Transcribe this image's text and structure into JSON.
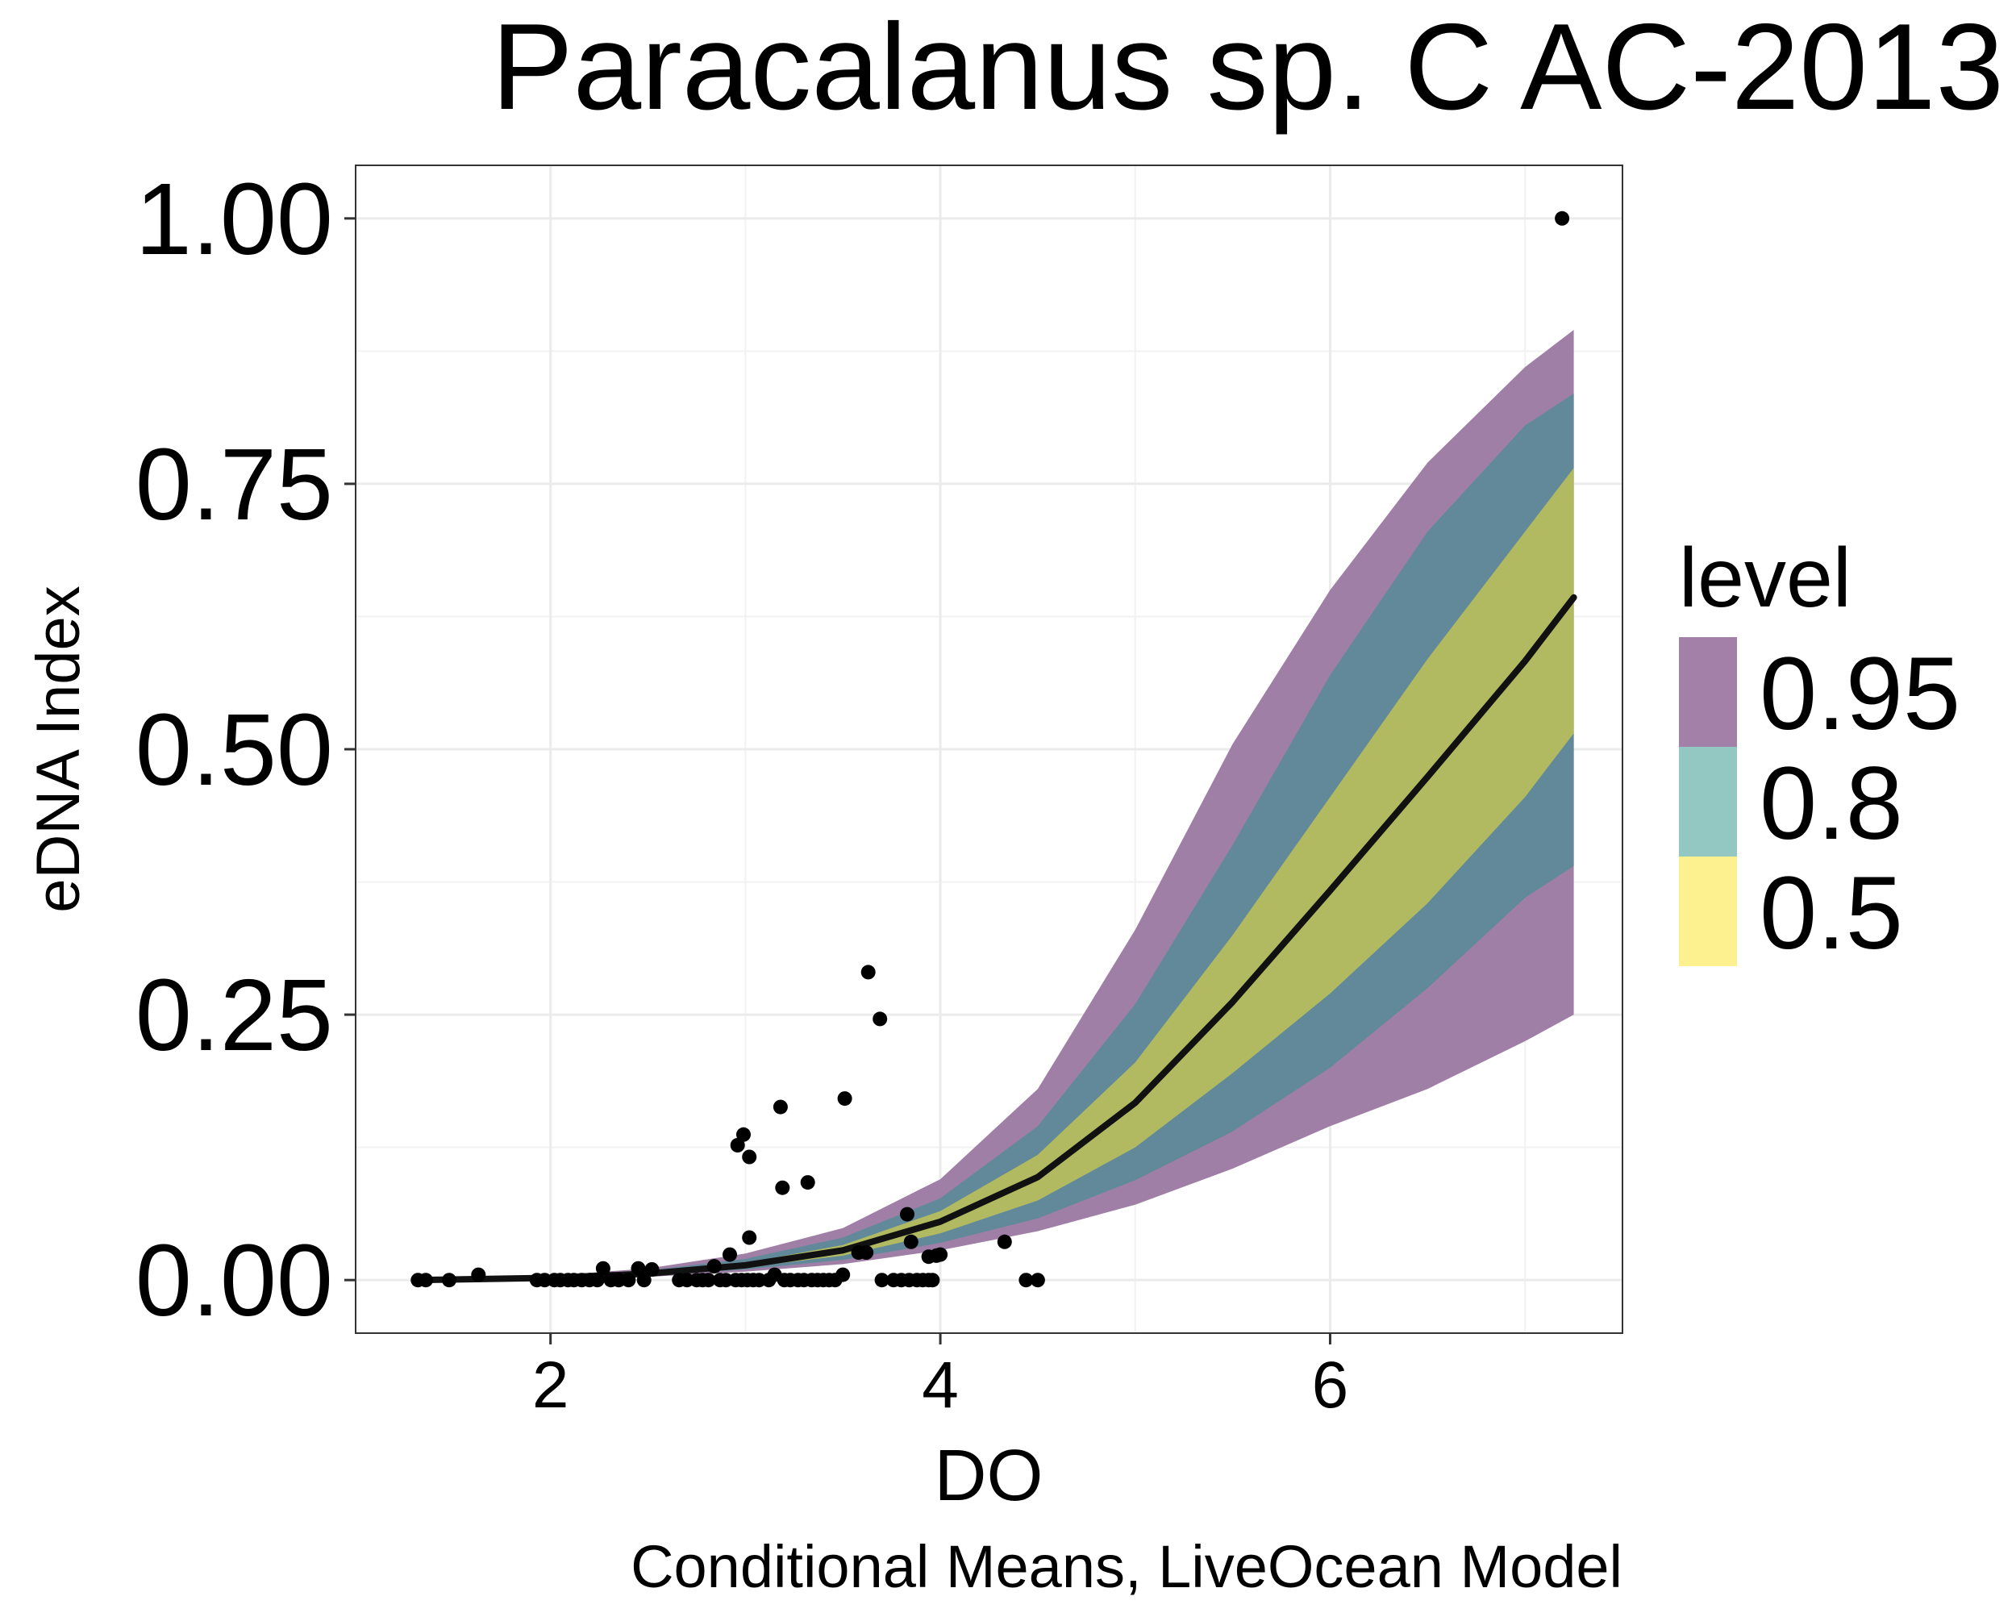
{
  "chart_data": {
    "type": "scatter",
    "title": "Paracalanus sp. C AC-2013",
    "xlabel": "DO",
    "ylabel": "eDNA Index",
    "caption": "Conditional Means, LiveOcean Model",
    "xlim": [
      1.0,
      7.5
    ],
    "ylim": [
      -0.05,
      1.05
    ],
    "x_ticks": [
      2,
      4,
      6
    ],
    "x_tick_labels": [
      "2",
      "4",
      "6"
    ],
    "x_minor_ticks": [
      1,
      3,
      5,
      7
    ],
    "y_ticks": [
      0,
      0.25,
      0.5,
      0.75,
      1.0
    ],
    "y_tick_labels": [
      "0.00",
      "0.25",
      "0.50",
      "0.75",
      "1.00"
    ],
    "y_minor_ticks": [
      0.125,
      0.375,
      0.625,
      0.875
    ],
    "grid": true,
    "legend": {
      "title": "level",
      "placement": "right",
      "entries": [
        {
          "label": "0.95",
          "color": "#a380a8"
        },
        {
          "label": "0.8",
          "color": "#93c7c2"
        },
        {
          "label": "0.5",
          "color": "#fdf08e"
        }
      ]
    },
    "band_colors": {
      "0.95": "#a07fa6",
      "0.8": "#62899a",
      "0.5": "#b1ba60"
    },
    "line_color": "#111111",
    "curve_x": [
      1.3,
      2.0,
      2.5,
      3.0,
      3.5,
      4.0,
      4.5,
      5.0,
      5.5,
      6.0,
      6.5,
      7.0,
      7.25
    ],
    "mean": [
      0.0,
      0.002,
      0.006,
      0.014,
      0.028,
      0.055,
      0.097,
      0.167,
      0.262,
      0.367,
      0.474,
      0.583,
      0.643
    ],
    "band_50": {
      "lower": [
        0.0,
        0.002,
        0.005,
        0.012,
        0.023,
        0.044,
        0.075,
        0.125,
        0.195,
        0.27,
        0.355,
        0.455,
        0.515
      ],
      "upper": [
        0.0,
        0.003,
        0.007,
        0.016,
        0.033,
        0.065,
        0.118,
        0.205,
        0.325,
        0.455,
        0.585,
        0.705,
        0.765
      ]
    },
    "band_80": {
      "lower": [
        0.0,
        0.0015,
        0.004,
        0.01,
        0.019,
        0.035,
        0.058,
        0.094,
        0.14,
        0.2,
        0.275,
        0.36,
        0.39
      ],
      "upper": [
        0.001,
        0.0035,
        0.009,
        0.02,
        0.04,
        0.077,
        0.145,
        0.26,
        0.41,
        0.57,
        0.705,
        0.805,
        0.835
      ]
    },
    "band_95": {
      "lower": [
        0.0,
        0.001,
        0.003,
        0.008,
        0.015,
        0.028,
        0.046,
        0.071,
        0.105,
        0.145,
        0.18,
        0.225,
        0.25
      ],
      "upper": [
        0.001,
        0.004,
        0.011,
        0.025,
        0.049,
        0.095,
        0.18,
        0.33,
        0.505,
        0.65,
        0.77,
        0.86,
        0.895
      ]
    },
    "points": [
      [
        1.32,
        0.0
      ],
      [
        1.36,
        0.0
      ],
      [
        1.48,
        0.0
      ],
      [
        1.63,
        0.005
      ],
      [
        1.93,
        0.0
      ],
      [
        1.97,
        0.0
      ],
      [
        2.02,
        0.0
      ],
      [
        2.05,
        0.0
      ],
      [
        2.09,
        0.0
      ],
      [
        2.12,
        0.0
      ],
      [
        2.16,
        0.0
      ],
      [
        2.2,
        0.0
      ],
      [
        2.24,
        0.0
      ],
      [
        2.27,
        0.011
      ],
      [
        2.31,
        0.0
      ],
      [
        2.35,
        0.0
      ],
      [
        2.4,
        0.0
      ],
      [
        2.45,
        0.011
      ],
      [
        2.48,
        0.0
      ],
      [
        2.52,
        0.01
      ],
      [
        2.66,
        0.0
      ],
      [
        2.7,
        0.0
      ],
      [
        2.75,
        0.0
      ],
      [
        2.78,
        0.0
      ],
      [
        2.81,
        0.0
      ],
      [
        2.84,
        0.013
      ],
      [
        2.87,
        0.0
      ],
      [
        2.9,
        0.0
      ],
      [
        2.92,
        0.024
      ],
      [
        2.95,
        0.0
      ],
      [
        2.98,
        0.0
      ],
      [
        3.01,
        0.0
      ],
      [
        3.04,
        0.0
      ],
      [
        3.07,
        0.0
      ],
      [
        2.96,
        0.127
      ],
      [
        2.99,
        0.137
      ],
      [
        3.02,
        0.116
      ],
      [
        3.02,
        0.04
      ],
      [
        3.12,
        0.0
      ],
      [
        3.15,
        0.005
      ],
      [
        3.18,
        0.163
      ],
      [
        3.19,
        0.087
      ],
      [
        3.2,
        0.0
      ],
      [
        3.23,
        0.0
      ],
      [
        3.27,
        0.0
      ],
      [
        3.3,
        0.0
      ],
      [
        3.32,
        0.092
      ],
      [
        3.34,
        0.0
      ],
      [
        3.37,
        0.0
      ],
      [
        3.4,
        0.0
      ],
      [
        3.43,
        0.0
      ],
      [
        3.46,
        0.0
      ],
      [
        3.5,
        0.005
      ],
      [
        3.51,
        0.171
      ],
      [
        3.58,
        0.026
      ],
      [
        3.62,
        0.026
      ],
      [
        3.63,
        0.29
      ],
      [
        3.69,
        0.246
      ],
      [
        3.7,
        0.0
      ],
      [
        3.76,
        0.0
      ],
      [
        3.8,
        0.0
      ],
      [
        3.83,
        0.062
      ],
      [
        3.84,
        0.0
      ],
      [
        3.85,
        0.036
      ],
      [
        3.88,
        0.0
      ],
      [
        3.91,
        0.0
      ],
      [
        3.94,
        0.0
      ],
      [
        3.96,
        0.0
      ],
      [
        3.94,
        0.022
      ],
      [
        3.98,
        0.023
      ],
      [
        4.0,
        0.024
      ],
      [
        4.33,
        0.036
      ],
      [
        4.44,
        0.0
      ],
      [
        4.5,
        0.0
      ],
      [
        7.19,
        1.0
      ]
    ]
  }
}
